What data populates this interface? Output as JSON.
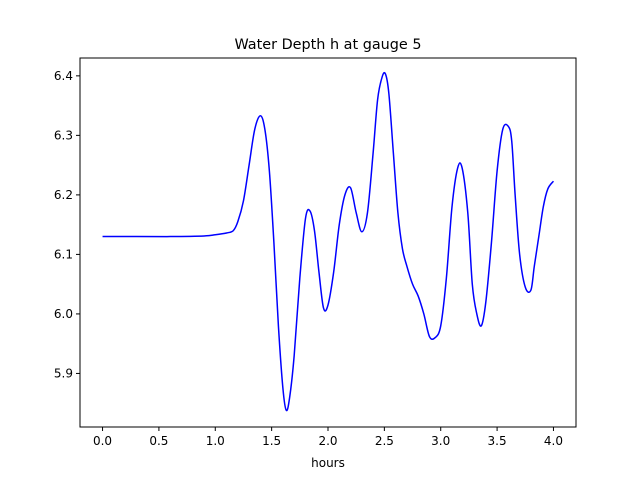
{
  "chart_data": {
    "type": "line",
    "title": "Water Depth h at gauge 5",
    "xlabel": "hours",
    "ylabel": "",
    "xlim": [
      -0.2,
      4.2
    ],
    "ylim": [
      5.81,
      6.43
    ],
    "xticks": [
      0.0,
      0.5,
      1.0,
      1.5,
      2.0,
      2.5,
      3.0,
      3.5,
      4.0
    ],
    "xtick_labels": [
      "0.0",
      "0.5",
      "1.0",
      "1.5",
      "2.0",
      "2.5",
      "3.0",
      "3.5",
      "4.0"
    ],
    "yticks": [
      5.9,
      6.0,
      6.1,
      6.2,
      6.3,
      6.4
    ],
    "ytick_labels": [
      "5.9",
      "6.0",
      "6.1",
      "6.2",
      "6.3",
      "6.4"
    ],
    "grid": false,
    "series": [
      {
        "color": "#0000ff",
        "x": [
          0.0,
          0.3,
          0.6,
          0.9,
          1.0,
          1.1,
          1.16,
          1.2,
          1.25,
          1.3,
          1.35,
          1.4,
          1.44,
          1.48,
          1.52,
          1.56,
          1.6,
          1.63,
          1.66,
          1.7,
          1.75,
          1.8,
          1.84,
          1.88,
          1.92,
          1.96,
          2.0,
          2.05,
          2.1,
          2.15,
          2.2,
          2.25,
          2.3,
          2.35,
          2.4,
          2.44,
          2.48,
          2.51,
          2.54,
          2.58,
          2.62,
          2.66,
          2.7,
          2.75,
          2.8,
          2.85,
          2.9,
          2.95,
          3.0,
          3.05,
          3.1,
          3.15,
          3.19,
          3.24,
          3.28,
          3.32,
          3.36,
          3.4,
          3.45,
          3.5,
          3.55,
          3.6,
          3.63,
          3.66,
          3.7,
          3.75,
          3.8,
          3.83,
          3.87,
          3.91,
          3.95,
          4.0
        ],
        "y": [
          6.13,
          6.13,
          6.13,
          6.131,
          6.133,
          6.136,
          6.14,
          6.155,
          6.19,
          6.25,
          6.31,
          6.333,
          6.31,
          6.24,
          6.12,
          5.98,
          5.875,
          5.838,
          5.86,
          5.93,
          6.06,
          6.16,
          6.173,
          6.14,
          6.07,
          6.01,
          6.015,
          6.07,
          6.15,
          6.2,
          6.212,
          6.17,
          6.138,
          6.17,
          6.27,
          6.36,
          6.398,
          6.403,
          6.37,
          6.27,
          6.17,
          6.11,
          6.08,
          6.05,
          6.03,
          6.0,
          5.962,
          5.96,
          5.98,
          6.06,
          6.18,
          6.245,
          6.245,
          6.17,
          6.05,
          6.0,
          5.98,
          6.02,
          6.12,
          6.24,
          6.31,
          6.315,
          6.29,
          6.2,
          6.1,
          6.045,
          6.04,
          6.08,
          6.13,
          6.18,
          6.21,
          6.223
        ]
      }
    ]
  }
}
